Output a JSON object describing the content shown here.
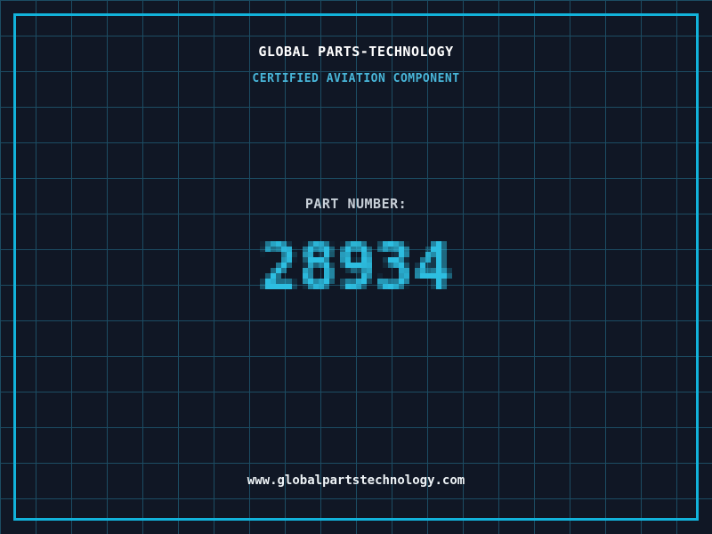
{
  "header": {
    "title": "GLOBAL PARTS-TECHNOLOGY",
    "subtitle": "CERTIFIED AVIATION COMPONENT"
  },
  "part": {
    "label": "PART NUMBER:",
    "number": "28934"
  },
  "footer": {
    "website": "www.globalpartstechnology.com"
  },
  "colors": {
    "background": "#101725",
    "grid_line": "#1c4c63",
    "frame": "#12b3db",
    "title": "#ffffff",
    "subtitle": "#48b6d9",
    "part_label": "#c7cfd7",
    "part_number": "#2dbee1",
    "website": "#eef3f6"
  }
}
